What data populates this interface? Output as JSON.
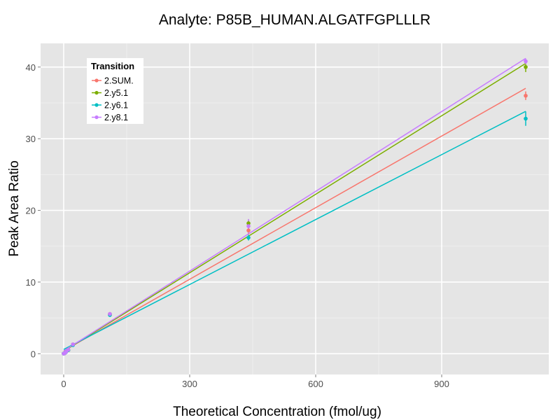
{
  "chart_data": {
    "type": "scatter",
    "title": "Analyte: P85B_HUMAN.ALGATFGPLLLR",
    "xlabel": "Theoretical Concentration (fmol/ug)",
    "ylabel": "Peak Area Ratio",
    "xlim": [
      -55,
      1155
    ],
    "ylim": [
      -2.9,
      43.3
    ],
    "x_ticks": [
      0,
      300,
      600,
      900
    ],
    "x_tick_labels": [
      "0",
      "300",
      "600",
      "900"
    ],
    "y_ticks": [
      0,
      10,
      20,
      30,
      40
    ],
    "y_tick_labels": [
      "0",
      "10",
      "20",
      "30",
      "40"
    ],
    "grid": true,
    "legend": {
      "title": "Transition",
      "position": "top-left"
    },
    "x": [
      0,
      2.2,
      5.5,
      11,
      22,
      110,
      440,
      1100
    ],
    "series": [
      {
        "name": "2.SUM.",
        "color": "#F8766D",
        "values": [
          0.02,
          0.07,
          0.25,
          0.55,
          1.3,
          5.55,
          17.2,
          36.0
        ],
        "errors": [
          0.02,
          0.02,
          0.05,
          0.05,
          0.1,
          0.15,
          0.5,
          0.6
        ],
        "fit": {
          "slope": 0.0333,
          "intercept": 0.4
        }
      },
      {
        "name": "2.y5.1",
        "color": "#7CAE00",
        "values": [
          0.02,
          0.07,
          0.25,
          0.5,
          1.25,
          5.45,
          18.2,
          40.0
        ],
        "errors": [
          0.02,
          0.02,
          0.05,
          0.05,
          0.1,
          0.15,
          0.5,
          0.7
        ],
        "fit": {
          "slope": 0.0365,
          "intercept": 0.35
        }
      },
      {
        "name": "2.y6.1",
        "color": "#00BFC4",
        "values": [
          0.02,
          0.07,
          0.22,
          0.5,
          1.2,
          5.4,
          16.2,
          32.8
        ],
        "errors": [
          0.02,
          0.02,
          0.05,
          0.05,
          0.1,
          0.15,
          0.4,
          1.0
        ],
        "fit": {
          "slope": 0.0302,
          "intercept": 0.6
        }
      },
      {
        "name": "2.y8.1",
        "color": "#C77CFF",
        "values": [
          0.02,
          0.07,
          0.25,
          0.55,
          1.3,
          5.55,
          17.8,
          40.8
        ],
        "errors": [
          0.02,
          0.02,
          0.05,
          0.05,
          0.1,
          0.15,
          1.0,
          0.4
        ],
        "fit": {
          "slope": 0.0371,
          "intercept": 0.4
        }
      }
    ]
  }
}
